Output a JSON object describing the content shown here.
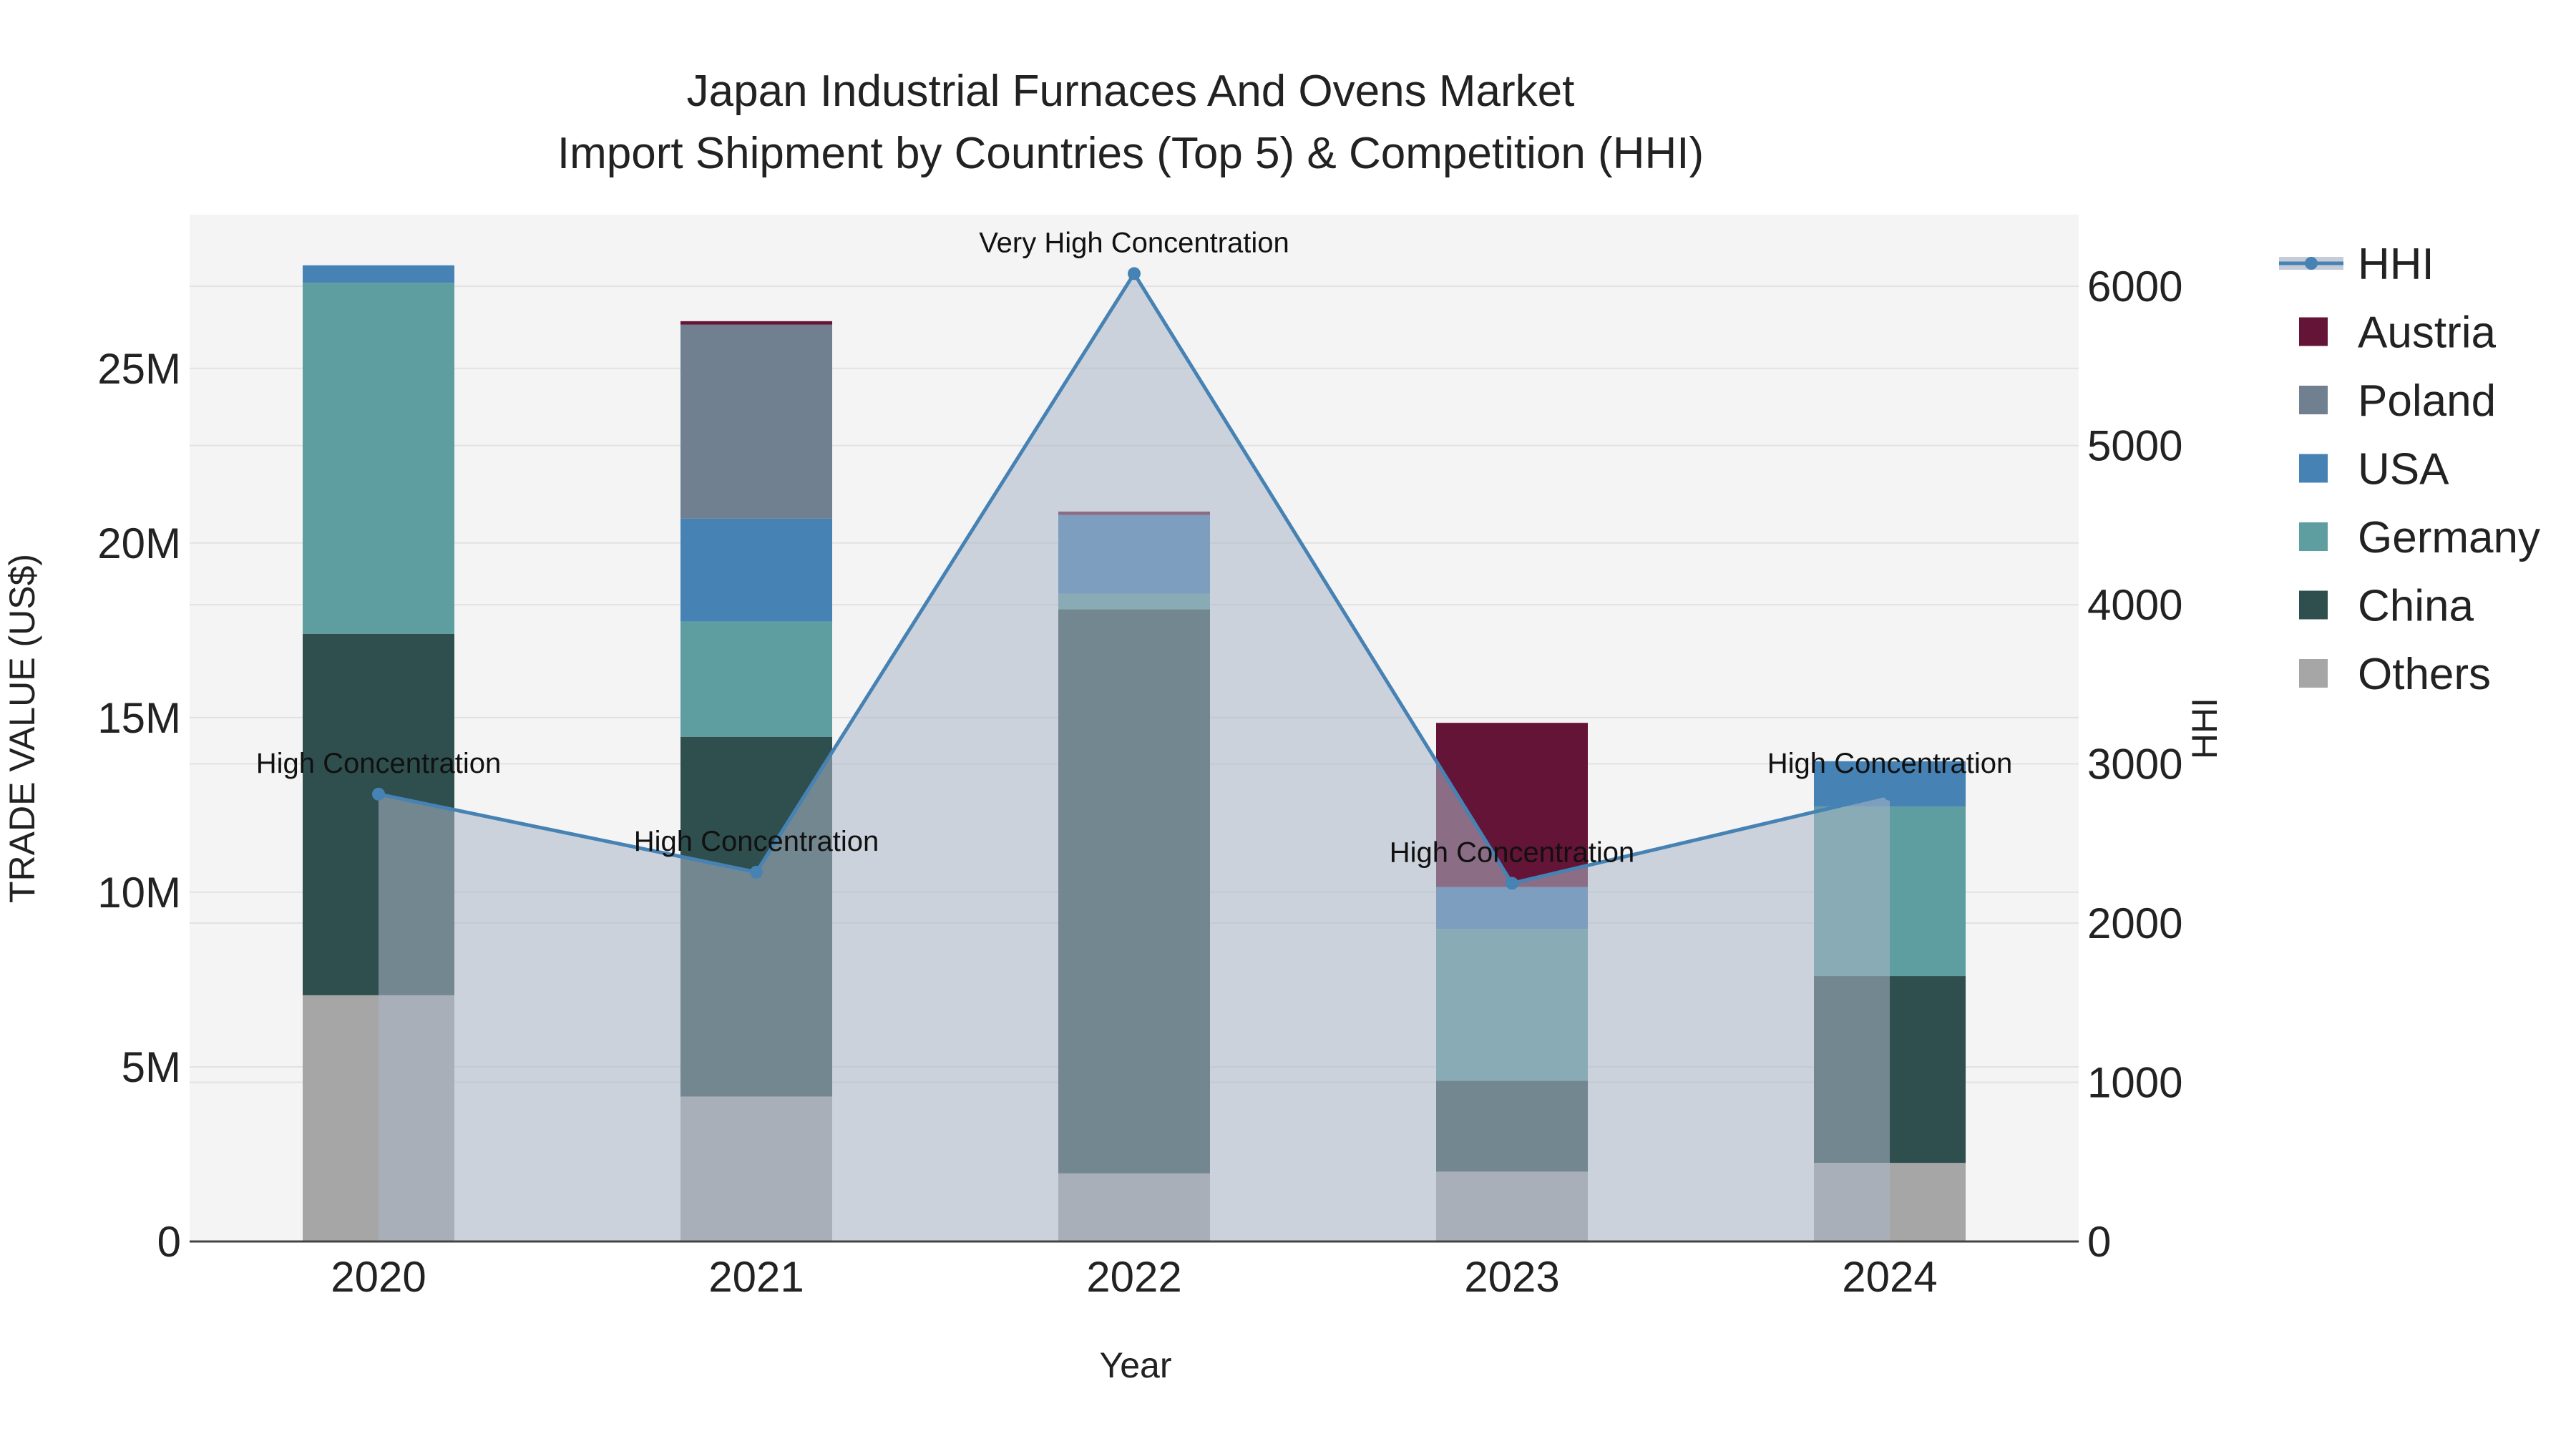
{
  "chart_data": {
    "type": "bar",
    "title_line1": "Japan Industrial Furnaces And Ovens Market",
    "title_line2": "Import Shipment by Countries (Top 5) & Competition (HHI)",
    "xlabel": "Year",
    "ylabel": "TRADE VALUE (US$)",
    "y2label": "HHI",
    "categories": [
      "2020",
      "2021",
      "2022",
      "2023",
      "2024"
    ],
    "ylim": [
      0,
      29400000
    ],
    "y_ticks": [
      0,
      5000000,
      10000000,
      15000000,
      20000000,
      25000000
    ],
    "y_tick_labels": [
      "0",
      "5M",
      "10M",
      "15M",
      "20M",
      "25M"
    ],
    "y2lim": [
      0,
      6450
    ],
    "y2_ticks": [
      0,
      1000,
      2000,
      3000,
      4000,
      5000,
      6000
    ],
    "y2_tick_labels": [
      "0",
      "1000",
      "2000",
      "3000",
      "4000",
      "5000",
      "6000"
    ],
    "series": [
      {
        "name": "Others",
        "color": "#a6a6a6",
        "values": [
          7050000,
          4150000,
          1950000,
          2000000,
          2250000
        ]
      },
      {
        "name": "China",
        "color": "#2f4f4f",
        "values": [
          10350000,
          10300000,
          16150000,
          2600000,
          5350000
        ]
      },
      {
        "name": "Germany",
        "color": "#5f9ea0",
        "values": [
          10050000,
          3300000,
          450000,
          4350000,
          4850000
        ]
      },
      {
        "name": "USA",
        "color": "#4682b4",
        "values": [
          500000,
          2950000,
          2250000,
          1200000,
          1300000
        ]
      },
      {
        "name": "Poland",
        "color": "#708090",
        "values": [
          0,
          5550000,
          0,
          0,
          0
        ]
      },
      {
        "name": "Austria",
        "color": "#641436",
        "values": [
          0,
          100000,
          100000,
          4700000,
          0
        ]
      }
    ],
    "hhi": {
      "name": "HHI",
      "color": "#4682b4",
      "values": [
        2810,
        2320,
        6080,
        2250,
        2810
      ],
      "labels": [
        "High Concentration",
        "High Concentration",
        "Very High Concentration",
        "High Concentration",
        "High Concentration"
      ]
    },
    "legend_order": [
      "HHI",
      "Austria",
      "Poland",
      "USA",
      "Germany",
      "China",
      "Others"
    ],
    "legend_position": "right",
    "grid": true
  }
}
